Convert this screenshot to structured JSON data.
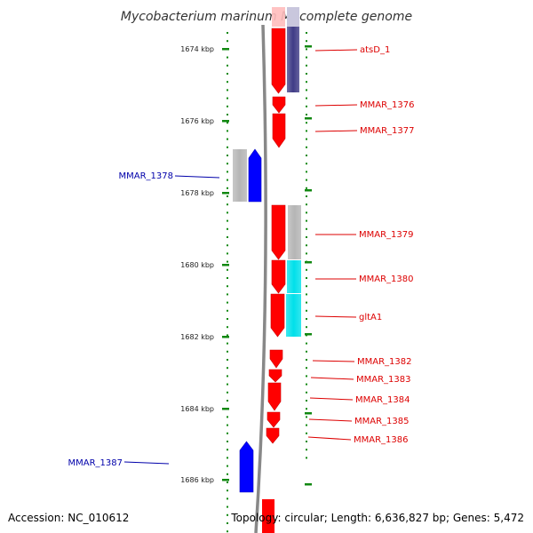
{
  "title": "Mycobacterium marinum M, complete genome",
  "footer": {
    "accession": "Accession: NC_010612",
    "summary": "Topology: circular; Length: 6,636,827 bp; Genes: 5,472"
  },
  "colors": {
    "forward_cds": "#ff0000",
    "reverse_cds": "#0000ff",
    "forward_label": "#dd0000",
    "reverse_label": "#0000aa",
    "backbone": "#888888",
    "tick": "#118811",
    "cog_purple": "#3f3b86",
    "cog_gray": "#b5b5b5",
    "cog_cyan": "#00e0ea"
  },
  "ruler": {
    "unit": "kbp",
    "labels": [
      "1674 kbp",
      "1676 kbp",
      "1678 kbp",
      "1680 kbp",
      "1682 kbp",
      "1684 kbp",
      "1686 kbp"
    ]
  },
  "genes": [
    {
      "name": "atsD_1",
      "strand": "forward",
      "cog": "purple"
    },
    {
      "name": "MMAR_1376",
      "strand": "forward"
    },
    {
      "name": "MMAR_1377",
      "strand": "forward"
    },
    {
      "name": "MMAR_1378",
      "strand": "reverse",
      "cog": "gray"
    },
    {
      "name": "MMAR_1379",
      "strand": "forward",
      "cog": "gray"
    },
    {
      "name": "MMAR_1380",
      "strand": "forward",
      "cog": "cyan"
    },
    {
      "name": "gltA1",
      "strand": "forward",
      "cog": "cyan"
    },
    {
      "name": "MMAR_1382",
      "strand": "forward"
    },
    {
      "name": "MMAR_1383",
      "strand": "forward"
    },
    {
      "name": "MMAR_1384",
      "strand": "forward"
    },
    {
      "name": "MMAR_1385",
      "strand": "forward"
    },
    {
      "name": "MMAR_1386",
      "strand": "forward"
    },
    {
      "name": "MMAR_1387",
      "strand": "reverse"
    }
  ]
}
